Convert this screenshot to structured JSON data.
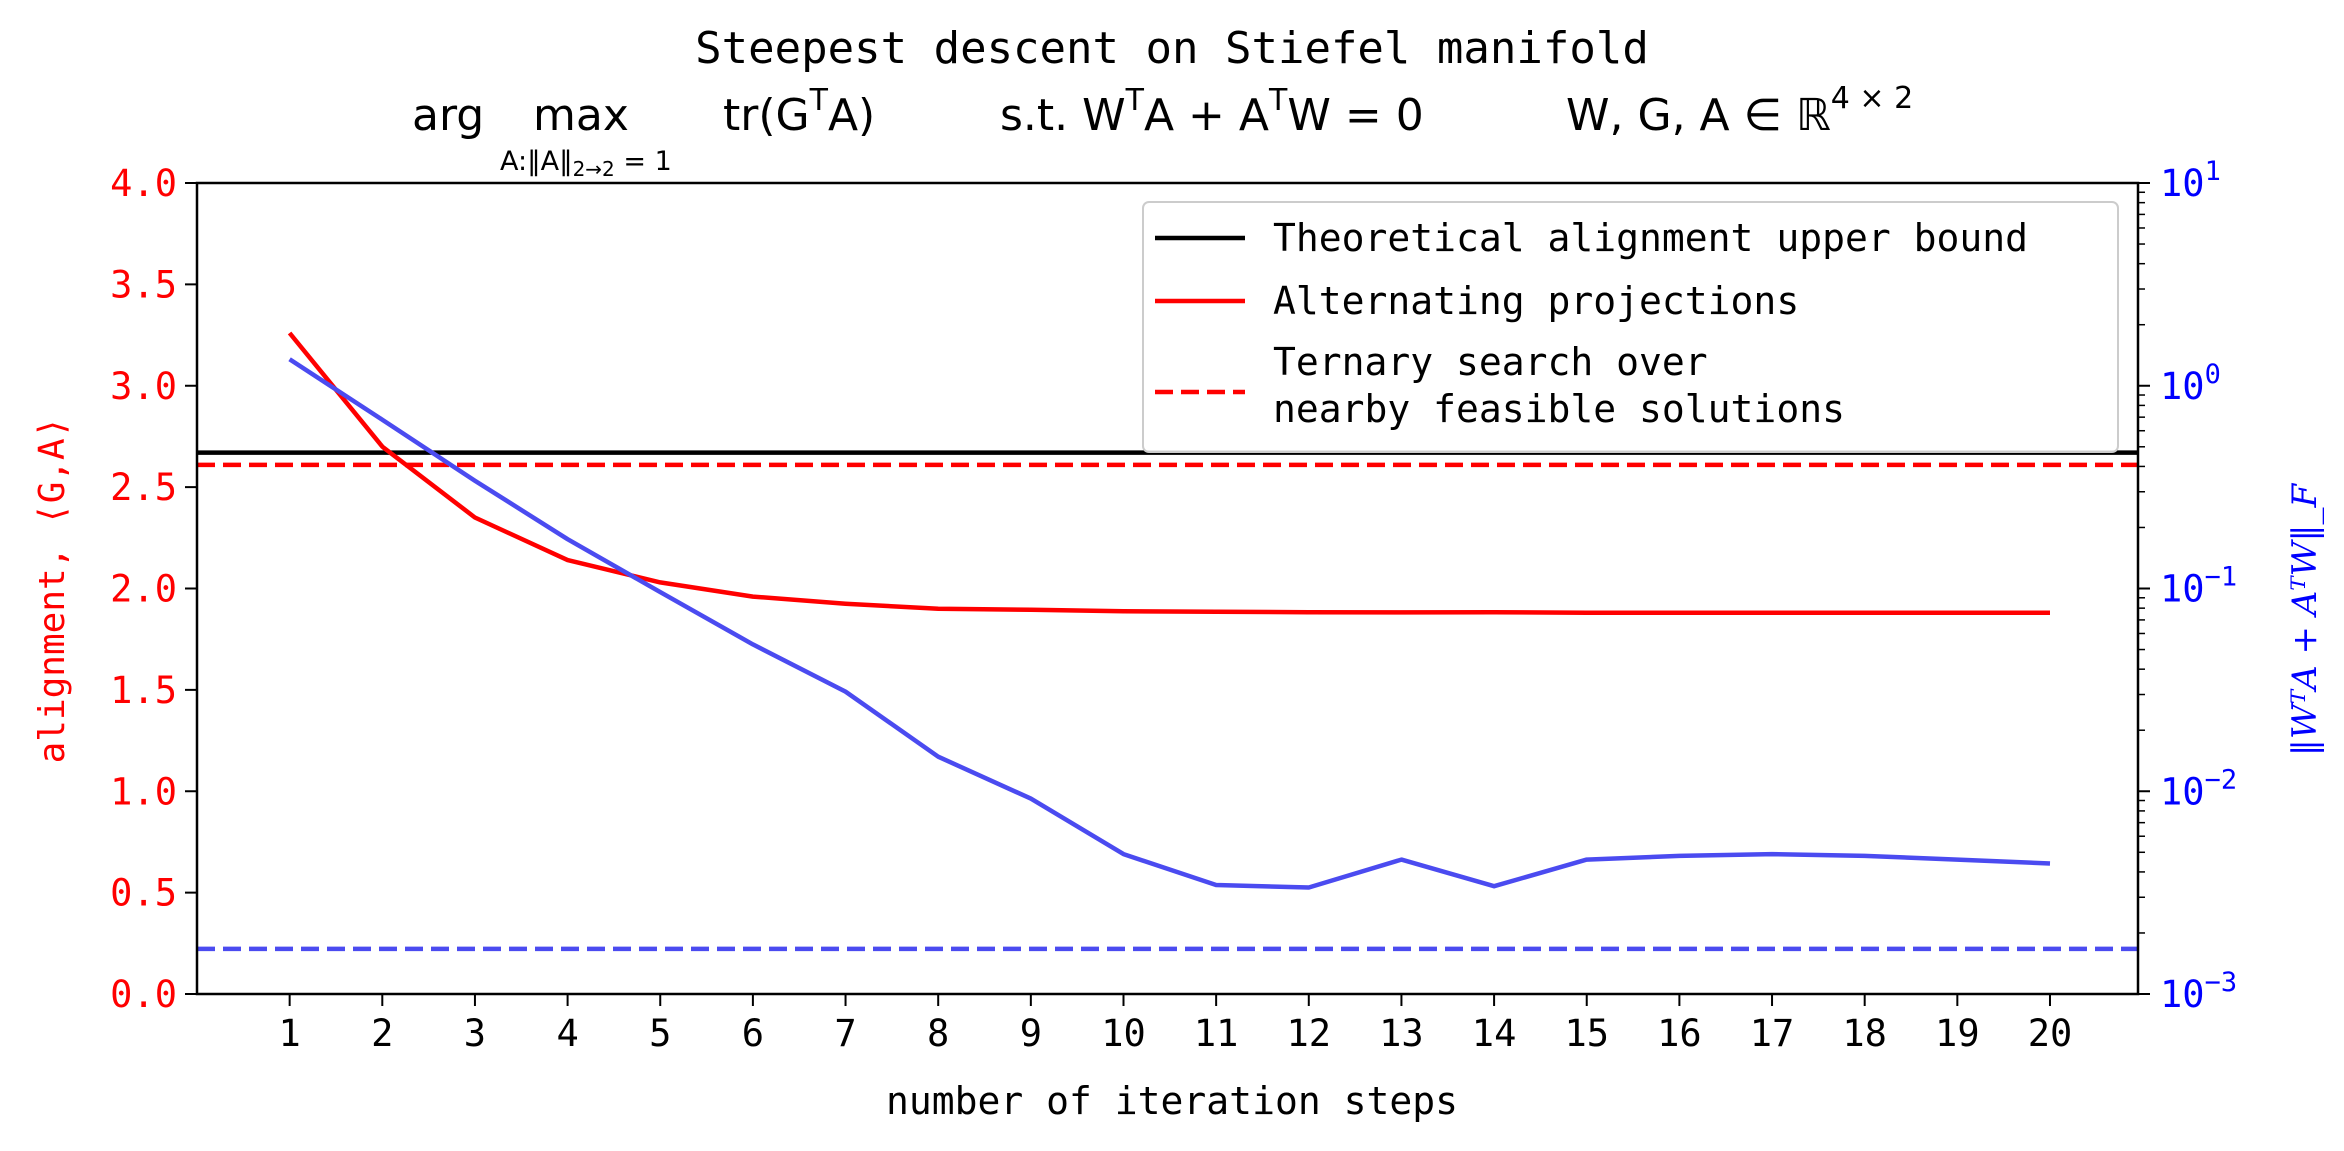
{
  "chart_data": {
    "type": "line",
    "title": "Steepest descent on Stiefel manifold",
    "subtitle": {
      "arg": "arg",
      "max": "max",
      "max_sub": "A:‖A‖",
      "max_sub_idx": "2→2",
      "max_sub_end": " = 1",
      "objective": "tr(G",
      "objective_sup": "T",
      "objective_end": "A)",
      "constraint": "s.t. W",
      "constraint_sup1": "T",
      "constraint_mid": "A + A",
      "constraint_sup2": "T",
      "constraint_end": "W = 0",
      "domain": "W, G, A ∈ ℝ",
      "domain_sup": "4 × 2"
    },
    "xlabel": "number of iteration steps",
    "ylabel_left": "alignment, ⟨G,A⟩",
    "ylabel_right": "‖WᵀA + AᵀW‖_F",
    "x": [
      1,
      2,
      3,
      4,
      5,
      6,
      7,
      8,
      9,
      10,
      11,
      12,
      13,
      14,
      15,
      16,
      17,
      18,
      19,
      20
    ],
    "xlim": [
      0.0,
      20.95
    ],
    "ylim_left": [
      0.0,
      4.0
    ],
    "ylim_right": [
      0.001,
      10
    ],
    "yscale_right": "log",
    "x_ticks": [
      "1",
      "2",
      "3",
      "4",
      "5",
      "6",
      "7",
      "8",
      "9",
      "10",
      "11",
      "12",
      "13",
      "14",
      "15",
      "16",
      "17",
      "18",
      "19",
      "20"
    ],
    "y_ticks_left": [
      "0.0",
      "0.5",
      "1.0",
      "1.5",
      "2.0",
      "2.5",
      "3.0",
      "3.5",
      "4.0"
    ],
    "y_ticks_right": [
      {
        "base": "10",
        "exp": "−3"
      },
      {
        "base": "10",
        "exp": "−2"
      },
      {
        "base": "10",
        "exp": "−1"
      },
      {
        "base": "10",
        "exp": "0"
      },
      {
        "base": "10",
        "exp": "1"
      }
    ],
    "hlines": [
      {
        "name": "Theoretical alignment upper bound",
        "axis": "left",
        "y": 2.67,
        "color": "#000000",
        "style": "solid"
      },
      {
        "name": "Ternary search over nearby feasible solutions",
        "axis": "left",
        "y": 2.61,
        "color": "#ff0000",
        "style": "dashed"
      },
      {
        "name": "",
        "axis": "right",
        "y": 0.00167,
        "color": "#4b4bf0",
        "style": "dashed"
      }
    ],
    "series": [
      {
        "name": "Alternating projections",
        "axis": "left",
        "color": "#ff0000",
        "values": [
          3.26,
          2.7,
          2.35,
          2.14,
          2.03,
          1.96,
          1.925,
          1.9,
          1.895,
          1.888,
          1.885,
          1.883,
          1.882,
          1.883,
          1.88,
          1.88,
          1.88,
          1.88,
          1.88,
          1.88
        ]
      },
      {
        "name": "",
        "axis": "right",
        "color": "#4b4bf0",
        "values": [
          1.35,
          0.68,
          0.34,
          0.175,
          0.096,
          0.053,
          0.031,
          0.0148,
          0.0092,
          0.0049,
          0.00345,
          0.00335,
          0.0046,
          0.0034,
          0.0046,
          0.0048,
          0.0049,
          0.0048,
          0.0046,
          0.0044
        ]
      }
    ],
    "legend": {
      "placement": "top-right",
      "entries": [
        {
          "label": "Theoretical alignment upper bound",
          "color": "#000000",
          "style": "solid"
        },
        {
          "label": "Alternating projections",
          "color": "#ff0000",
          "style": "solid"
        },
        {
          "label_lines": [
            "Ternary search over",
            "nearby feasible solutions"
          ],
          "color": "#ff0000",
          "style": "dashed"
        }
      ]
    },
    "colors": {
      "left_axis": "#ff0000",
      "right_axis": "#0000ff",
      "right_series": "#4b4bf0"
    },
    "grid": false
  }
}
